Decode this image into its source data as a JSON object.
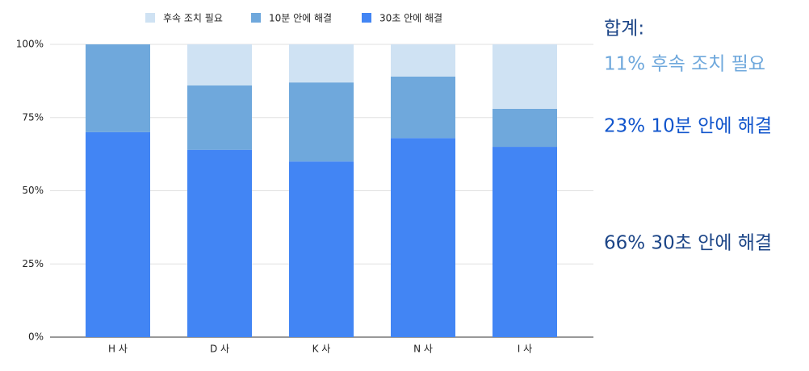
{
  "chart_data": {
    "type": "stacked-bar",
    "categories": [
      "H 사",
      "D 사",
      "K 사",
      "N 사",
      "I 사"
    ],
    "series": [
      {
        "name": "후속 조치 필요",
        "color": "#cfe2f3",
        "values": [
          0,
          14,
          13,
          11,
          22
        ]
      },
      {
        "name": "10분 안에 해결",
        "color": "#6fa8dc",
        "values": [
          30,
          22,
          27,
          21,
          13
        ]
      },
      {
        "name": "30초 안에 해결",
        "color": "#4285f4",
        "values": [
          70,
          64,
          60,
          68,
          65
        ]
      }
    ],
    "ylim": [
      0,
      100
    ],
    "yticks": [
      {
        "value": 0,
        "label": "0%"
      },
      {
        "value": 25,
        "label": "25%"
      },
      {
        "value": 50,
        "label": "50%"
      },
      {
        "value": 75,
        "label": "75%"
      },
      {
        "value": 100,
        "label": "100%"
      }
    ],
    "grid": true,
    "legend": "top",
    "annotations": [
      {
        "text": "합계:",
        "color": "#1c4587"
      },
      {
        "text": "11% 후속 조치 필요",
        "color": "#6fa8dc"
      },
      {
        "text": "23% 10분 안에 해결",
        "color": "#1155cc"
      },
      {
        "text": "66% 30초 안에 해결",
        "color": "#1c4587"
      }
    ]
  }
}
